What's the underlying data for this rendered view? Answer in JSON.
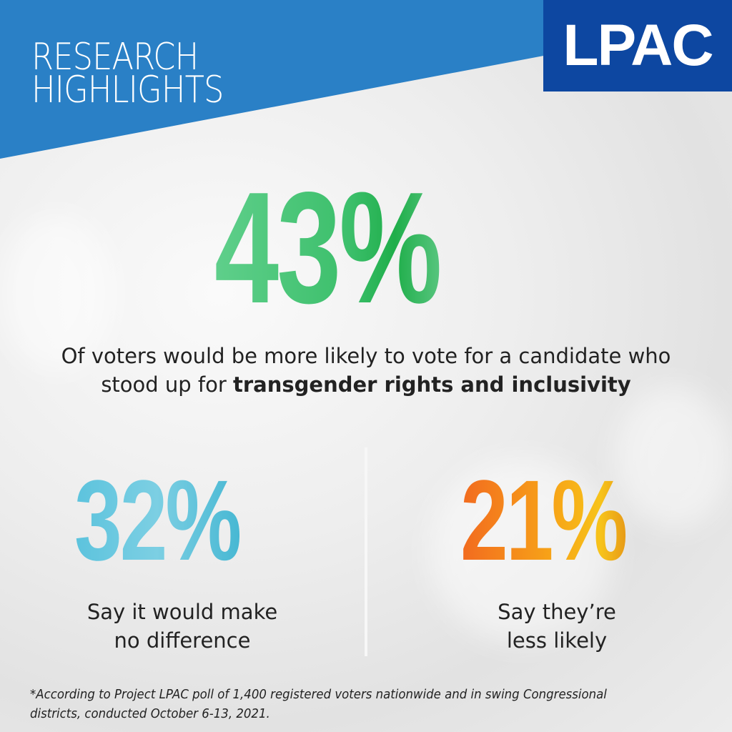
{
  "header": {
    "line1": "RESEARCH",
    "line2": "HIGHLIGHTS",
    "logo": "LPAC"
  },
  "colors": {
    "banner": "#2a80c6",
    "logo_bg": "#0d47a1",
    "primary_stat": "#3cbf6b",
    "secondary_stat": "#5cc3dd",
    "tertiary_stat": "#f7a318"
  },
  "primary": {
    "value": "43%",
    "text_regular": "Of voters would be more likely to vote for a candidate who stood up for ",
    "text_bold": "transgender rights and inclusivity"
  },
  "left": {
    "value": "32%",
    "line1": "Say it would make",
    "line2": "no difference"
  },
  "right": {
    "value": "21%",
    "line1": "Say they’re",
    "line2": "less likely"
  },
  "footnote": "*According to Project LPAC poll of 1,400 registered voters nationwide and in swing Congressional districts, conducted October 6-13, 2021."
}
